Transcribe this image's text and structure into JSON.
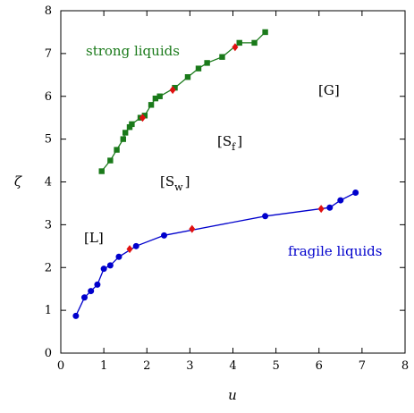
{
  "chart_data": {
    "type": "line",
    "xlabel": "u",
    "ylabel": "ζ",
    "xlim": [
      0,
      8
    ],
    "ylim": [
      0,
      8
    ],
    "xticks": [
      "0",
      "1",
      "2",
      "3",
      "4",
      "5",
      "6",
      "7",
      "8"
    ],
    "yticks": [
      "0",
      "1",
      "2",
      "3",
      "4",
      "5",
      "6",
      "7",
      "8"
    ],
    "grid": false,
    "legend": "none",
    "series": [
      {
        "color": "#1a7a1a",
        "marker": "square",
        "points": [
          [
            0.95,
            4.25
          ],
          [
            1.15,
            4.5
          ],
          [
            1.3,
            4.75
          ],
          [
            1.45,
            5.0
          ],
          [
            1.5,
            5.15
          ],
          [
            1.6,
            5.28
          ],
          [
            1.65,
            5.35
          ],
          [
            1.85,
            5.5
          ],
          [
            1.95,
            5.55
          ],
          [
            2.1,
            5.8
          ],
          [
            2.2,
            5.95
          ],
          [
            2.3,
            6.0
          ],
          [
            2.65,
            6.2
          ],
          [
            2.95,
            6.45
          ],
          [
            3.2,
            6.65
          ],
          [
            3.4,
            6.78
          ],
          [
            3.75,
            6.92
          ],
          [
            4.15,
            7.25
          ],
          [
            4.5,
            7.25
          ],
          [
            4.75,
            7.5
          ]
        ],
        "red_markers": [
          [
            1.9,
            5.5
          ],
          [
            2.6,
            6.15
          ],
          [
            4.05,
            7.15
          ]
        ]
      },
      {
        "color": "#0000cc",
        "marker": "circle",
        "points": [
          [
            0.35,
            0.87
          ],
          [
            0.55,
            1.3
          ],
          [
            0.7,
            1.45
          ],
          [
            0.85,
            1.6
          ],
          [
            1.0,
            1.97
          ],
          [
            1.15,
            2.05
          ],
          [
            1.35,
            2.25
          ],
          [
            1.75,
            2.5
          ],
          [
            2.4,
            2.75
          ],
          [
            4.75,
            3.2
          ],
          [
            6.25,
            3.4
          ],
          [
            6.5,
            3.57
          ],
          [
            6.85,
            3.75
          ]
        ],
        "red_markers": [
          [
            1.6,
            2.43
          ],
          [
            3.05,
            2.9
          ],
          [
            6.05,
            3.37
          ]
        ]
      }
    ],
    "annotations": [
      {
        "text": "strong liquids",
        "color": "#1a7a1a"
      },
      {
        "text": "fragile liquids",
        "color": "#0000cc"
      },
      {
        "text": "[L]",
        "color": "#000000"
      },
      {
        "text": "[S",
        "sub": "w",
        "close": "]",
        "color": "#000000"
      },
      {
        "text": "[S",
        "sub": "f",
        "close": "]",
        "color": "#000000"
      },
      {
        "text": "[G]",
        "color": "#000000"
      }
    ]
  }
}
